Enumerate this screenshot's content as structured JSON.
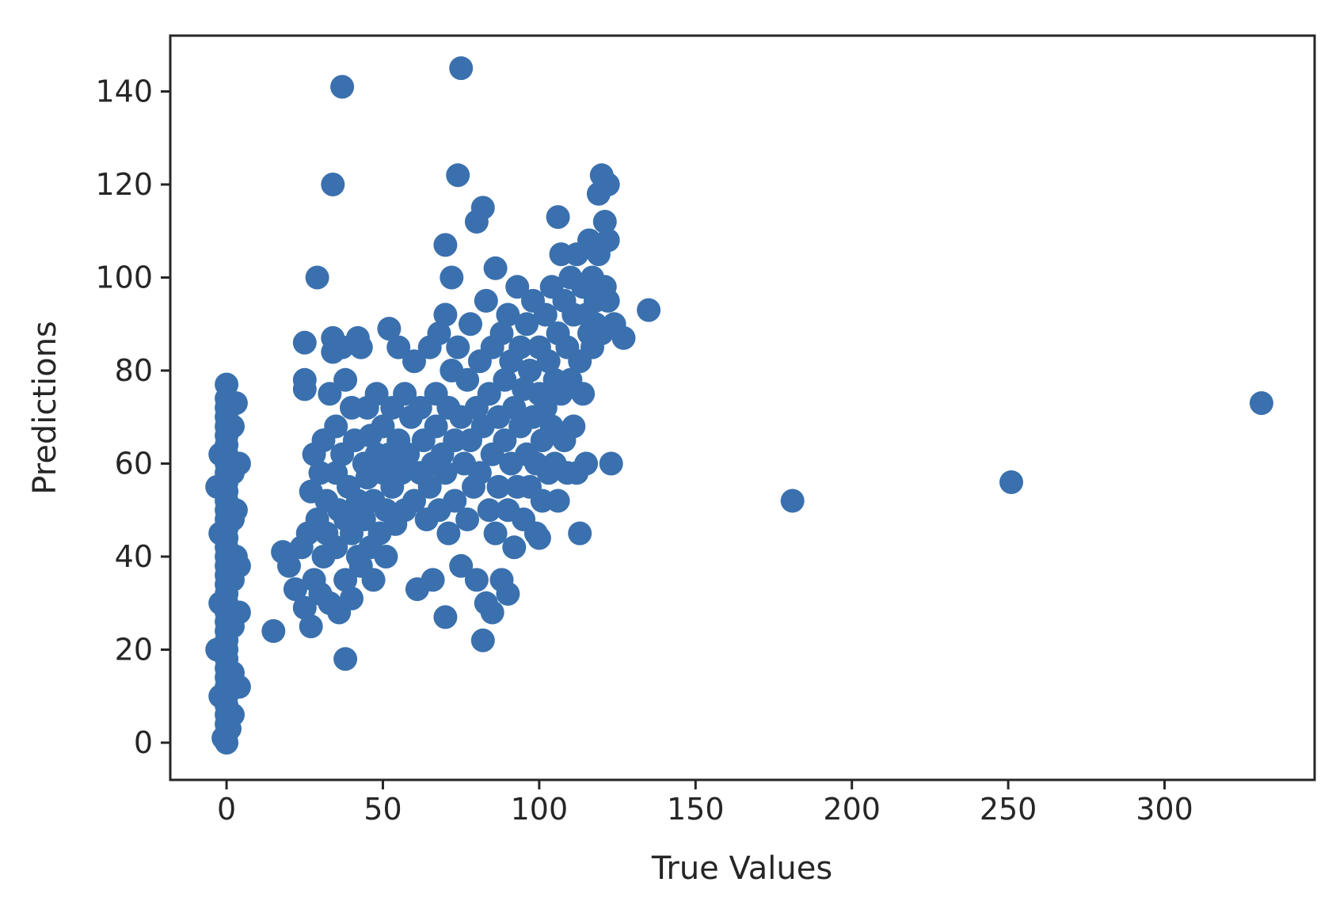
{
  "chart_data": {
    "type": "scatter",
    "xlabel": "True Values",
    "ylabel": "Predictions",
    "xlim": [
      -18,
      348
    ],
    "ylim": [
      -8,
      152
    ],
    "xticks": [
      0,
      50,
      100,
      150,
      200,
      250,
      300
    ],
    "yticks": [
      0,
      20,
      40,
      60,
      80,
      100,
      120,
      140
    ],
    "grid": false,
    "legend": "none",
    "color": "#3a70ae",
    "series": [
      {
        "points": [
          [
            0,
            0
          ],
          [
            0,
            2
          ],
          [
            0,
            4
          ],
          [
            0,
            6
          ],
          [
            0,
            8
          ],
          [
            0,
            10
          ],
          [
            0,
            12
          ],
          [
            0,
            14
          ],
          [
            0,
            16
          ],
          [
            0,
            18
          ],
          [
            0,
            20
          ],
          [
            0,
            22
          ],
          [
            0,
            24
          ],
          [
            0,
            26
          ],
          [
            0,
            28
          ],
          [
            0,
            30
          ],
          [
            0,
            32
          ],
          [
            0,
            34
          ],
          [
            0,
            36
          ],
          [
            0,
            38
          ],
          [
            0,
            40
          ],
          [
            0,
            42
          ],
          [
            0,
            44
          ],
          [
            0,
            46
          ],
          [
            0,
            48
          ],
          [
            0,
            50
          ],
          [
            0,
            52
          ],
          [
            0,
            54
          ],
          [
            0,
            56
          ],
          [
            0,
            58
          ],
          [
            0,
            60
          ],
          [
            0,
            62
          ],
          [
            0,
            64
          ],
          [
            0,
            66
          ],
          [
            0,
            68
          ],
          [
            0,
            70
          ],
          [
            0,
            72
          ],
          [
            0,
            74
          ],
          [
            0,
            77
          ],
          [
            -3,
            20
          ],
          [
            -3,
            55
          ],
          [
            -2,
            10
          ],
          [
            -2,
            30
          ],
          [
            -2,
            45
          ],
          [
            -2,
            62
          ],
          [
            2,
            6
          ],
          [
            2,
            15
          ],
          [
            2,
            25
          ],
          [
            2,
            35
          ],
          [
            2,
            48
          ],
          [
            2,
            58
          ],
          [
            2,
            68
          ],
          [
            3,
            40
          ],
          [
            3,
            50
          ],
          [
            3,
            73
          ],
          [
            4,
            12
          ],
          [
            4,
            28
          ],
          [
            4,
            38
          ],
          [
            4,
            60
          ],
          [
            -1,
            1
          ],
          [
            1,
            3
          ],
          [
            15,
            24
          ],
          [
            18,
            41
          ],
          [
            20,
            38
          ],
          [
            22,
            33
          ],
          [
            24,
            42
          ],
          [
            25,
            29
          ],
          [
            25,
            86
          ],
          [
            25,
            78
          ],
          [
            25,
            76
          ],
          [
            26,
            45
          ],
          [
            27,
            25
          ],
          [
            27,
            54
          ],
          [
            28,
            62
          ],
          [
            28,
            35
          ],
          [
            29,
            48
          ],
          [
            29,
            100
          ],
          [
            30,
            58
          ],
          [
            30,
            32
          ],
          [
            31,
            65
          ],
          [
            31,
            40
          ],
          [
            32,
            52
          ],
          [
            32,
            45
          ],
          [
            33,
            75
          ],
          [
            33,
            30
          ],
          [
            34,
            84
          ],
          [
            34,
            87
          ],
          [
            34,
            120
          ],
          [
            35,
            42
          ],
          [
            35,
            58
          ],
          [
            35,
            68
          ],
          [
            36,
            28
          ],
          [
            36,
            50
          ],
          [
            37,
            141
          ],
          [
            37,
            85
          ],
          [
            37,
            62
          ],
          [
            38,
            18
          ],
          [
            38,
            35
          ],
          [
            38,
            48
          ],
          [
            38,
            78
          ],
          [
            39,
            55
          ],
          [
            40,
            45
          ],
          [
            40,
            72
          ],
          [
            40,
            31
          ],
          [
            41,
            65
          ],
          [
            42,
            87
          ],
          [
            42,
            52
          ],
          [
            42,
            40
          ],
          [
            43,
            38
          ],
          [
            43,
            85
          ],
          [
            44,
            60
          ],
          [
            44,
            48
          ],
          [
            45,
            72
          ],
          [
            45,
            57
          ],
          [
            46,
            42
          ],
          [
            46,
            66
          ],
          [
            47,
            52
          ],
          [
            47,
            35
          ],
          [
            48,
            62
          ],
          [
            48,
            75
          ],
          [
            49,
            45
          ],
          [
            50,
            58
          ],
          [
            50,
            68
          ],
          [
            51,
            50
          ],
          [
            51,
            40
          ],
          [
            52,
            89
          ],
          [
            52,
            62
          ],
          [
            53,
            72
          ],
          [
            53,
            55
          ],
          [
            54,
            47
          ],
          [
            55,
            65
          ],
          [
            55,
            85
          ],
          [
            56,
            58
          ],
          [
            57,
            75
          ],
          [
            57,
            50
          ],
          [
            58,
            62
          ],
          [
            59,
            70
          ],
          [
            60,
            52
          ],
          [
            60,
            82
          ],
          [
            61,
            33
          ],
          [
            62,
            58
          ],
          [
            62,
            72
          ],
          [
            63,
            65
          ],
          [
            64,
            48
          ],
          [
            65,
            85
          ],
          [
            65,
            55
          ],
          [
            66,
            35
          ],
          [
            66,
            60
          ],
          [
            67,
            75
          ],
          [
            67,
            68
          ],
          [
            68,
            88
          ],
          [
            68,
            50
          ],
          [
            69,
            62
          ],
          [
            70,
            92
          ],
          [
            70,
            27
          ],
          [
            70,
            107
          ],
          [
            70,
            58
          ],
          [
            71,
            72
          ],
          [
            71,
            45
          ],
          [
            72,
            80
          ],
          [
            72,
            100
          ],
          [
            73,
            65
          ],
          [
            73,
            52
          ],
          [
            74,
            122
          ],
          [
            74,
            85
          ],
          [
            75,
            145
          ],
          [
            75,
            70
          ],
          [
            75,
            38
          ],
          [
            76,
            60
          ],
          [
            77,
            78
          ],
          [
            77,
            48
          ],
          [
            78,
            90
          ],
          [
            78,
            65
          ],
          [
            79,
            55
          ],
          [
            80,
            112
          ],
          [
            80,
            72
          ],
          [
            80,
            35
          ],
          [
            81,
            82
          ],
          [
            81,
            58
          ],
          [
            82,
            22
          ],
          [
            82,
            115
          ],
          [
            82,
            68
          ],
          [
            83,
            30
          ],
          [
            83,
            95
          ],
          [
            84,
            50
          ],
          [
            84,
            75
          ],
          [
            85,
            28
          ],
          [
            85,
            85
          ],
          [
            85,
            62
          ],
          [
            86,
            102
          ],
          [
            86,
            45
          ],
          [
            87,
            70
          ],
          [
            87,
            55
          ],
          [
            88,
            88
          ],
          [
            88,
            35
          ],
          [
            89,
            78
          ],
          [
            89,
            65
          ],
          [
            90,
            92
          ],
          [
            90,
            50
          ],
          [
            90,
            32
          ],
          [
            91,
            60
          ],
          [
            91,
            82
          ],
          [
            92,
            72
          ],
          [
            92,
            42
          ],
          [
            93,
            98
          ],
          [
            93,
            55
          ],
          [
            94,
            68
          ],
          [
            94,
            85
          ],
          [
            95,
            76
          ],
          [
            95,
            48
          ],
          [
            96,
            90
          ],
          [
            96,
            62
          ],
          [
            97,
            80
          ],
          [
            97,
            55
          ],
          [
            98,
            70
          ],
          [
            98,
            95
          ],
          [
            99,
            60
          ],
          [
            99,
            45
          ],
          [
            100,
            44
          ],
          [
            100,
            85
          ],
          [
            100,
            75
          ],
          [
            101,
            65
          ],
          [
            101,
            52
          ],
          [
            102,
            92
          ],
          [
            102,
            72
          ],
          [
            103,
            82
          ],
          [
            103,
            58
          ],
          [
            104,
            98
          ],
          [
            104,
            68
          ],
          [
            105,
            78
          ],
          [
            105,
            60
          ],
          [
            106,
            113
          ],
          [
            106,
            88
          ],
          [
            106,
            52
          ],
          [
            107,
            105
          ],
          [
            107,
            75
          ],
          [
            108,
            95
          ],
          [
            108,
            65
          ],
          [
            109,
            85
          ],
          [
            109,
            58
          ],
          [
            110,
            100
          ],
          [
            110,
            78
          ],
          [
            111,
            92
          ],
          [
            111,
            68
          ],
          [
            112,
            105
          ],
          [
            112,
            58
          ],
          [
            113,
            82
          ],
          [
            113,
            45
          ],
          [
            114,
            98
          ],
          [
            114,
            75
          ],
          [
            115,
            92
          ],
          [
            115,
            60
          ],
          [
            116,
            108
          ],
          [
            116,
            88
          ],
          [
            117,
            100
          ],
          [
            117,
            85
          ],
          [
            118,
            95
          ],
          [
            118,
            90
          ],
          [
            119,
            118
          ],
          [
            119,
            105
          ],
          [
            120,
            122
          ],
          [
            120,
            88
          ],
          [
            121,
            112
          ],
          [
            121,
            98
          ],
          [
            122,
            120
          ],
          [
            122,
            108
          ],
          [
            122,
            95
          ],
          [
            123,
            60
          ],
          [
            124,
            90
          ],
          [
            127,
            87
          ],
          [
            135,
            93
          ],
          [
            181,
            52
          ],
          [
            251,
            56
          ],
          [
            331,
            73
          ]
        ]
      }
    ]
  }
}
